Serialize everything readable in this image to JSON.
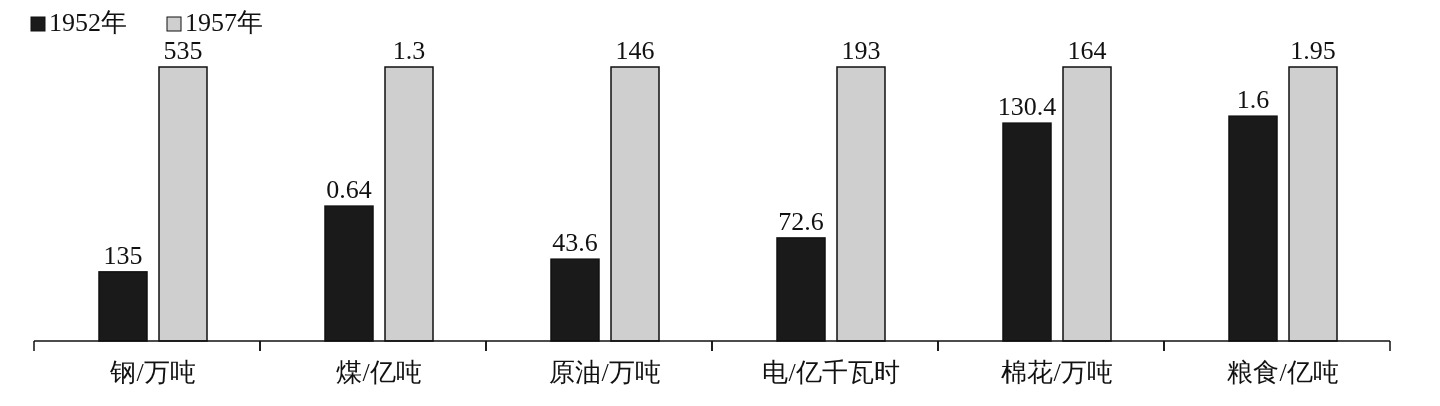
{
  "chart_data": [
    {
      "type": "bar",
      "categories": [
        "钢/万吨"
      ],
      "data_labels": true,
      "tick_labels": "x",
      "legend": "top",
      "series": [
        {
          "name": "1952年",
          "color": "#1a1a1a",
          "values": [
            135
          ]
        },
        {
          "name": "1957年",
          "color": "#cfcfcf",
          "values": [
            535
          ]
        }
      ]
    },
    {
      "type": "bar",
      "categories": [
        "煤/亿吨"
      ],
      "data_labels": true,
      "tick_labels": "x",
      "series": [
        {
          "color": "#1a1a1a",
          "values": [
            0.64
          ]
        },
        {
          "color": "#cfcfcf",
          "values": [
            1.3
          ]
        }
      ]
    },
    {
      "type": "bar",
      "categories": [
        "原油/万吨"
      ],
      "data_labels": true,
      "tick_labels": "x",
      "series": [
        {
          "color": "#1a1a1a",
          "values": [
            43.6
          ]
        },
        {
          "color": "#cfcfcf",
          "values": [
            146
          ]
        }
      ]
    },
    {
      "type": "bar",
      "categories": [
        "电/亿千瓦时"
      ],
      "data_labels": true,
      "tick_labels": "x",
      "series": [
        {
          "color": "#1a1a1a",
          "values": [
            72.6
          ]
        },
        {
          "color": "#cfcfcf",
          "values": [
            193
          ]
        }
      ]
    },
    {
      "type": "bar",
      "categories": [
        "棉花/万吨"
      ],
      "data_labels": true,
      "tick_labels": "x",
      "series": [
        {
          "color": "#1a1a1a",
          "values": [
            130.4
          ]
        },
        {
          "color": "#cfcfcf",
          "values": [
            164
          ]
        }
      ]
    },
    {
      "type": "bar",
      "categories": [
        "粮食/亿吨"
      ],
      "data_labels": true,
      "tick_labels": "x",
      "series": [
        {
          "color": "#1a1a1a",
          "values": [
            1.6
          ]
        },
        {
          "color": "#cfcfcf",
          "values": [
            1.95
          ]
        }
      ]
    }
  ]
}
